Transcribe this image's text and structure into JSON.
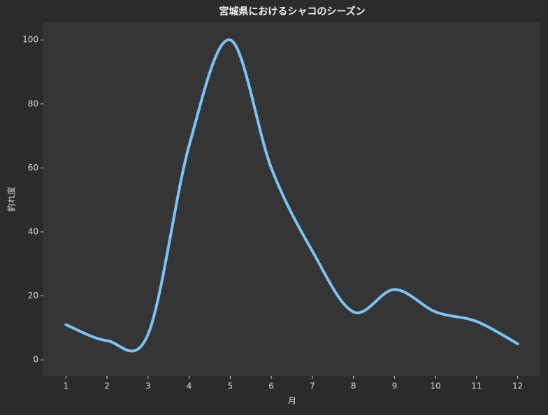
{
  "chart_data": {
    "type": "line",
    "title": "宮城県におけるシャコのシーズン",
    "x_label": "月",
    "y_label": "釣れ度",
    "x": [
      1,
      2,
      3,
      4,
      5,
      6,
      7,
      8,
      9,
      10,
      11,
      12
    ],
    "series": [
      {
        "name": "釣れ度",
        "color": "#7cc3f5",
        "values": [
          11,
          6,
          8,
          67,
          100,
          60,
          34,
          15,
          22,
          15,
          12,
          5
        ]
      }
    ],
    "xlim": [
      0.45,
      12.55
    ],
    "ylim": [
      -5,
      105.5
    ],
    "xticks": [
      1,
      2,
      3,
      4,
      5,
      6,
      7,
      8,
      9,
      10,
      11,
      12
    ],
    "yticks": [
      0,
      20,
      40,
      60,
      80,
      100
    ],
    "grid": false
  }
}
